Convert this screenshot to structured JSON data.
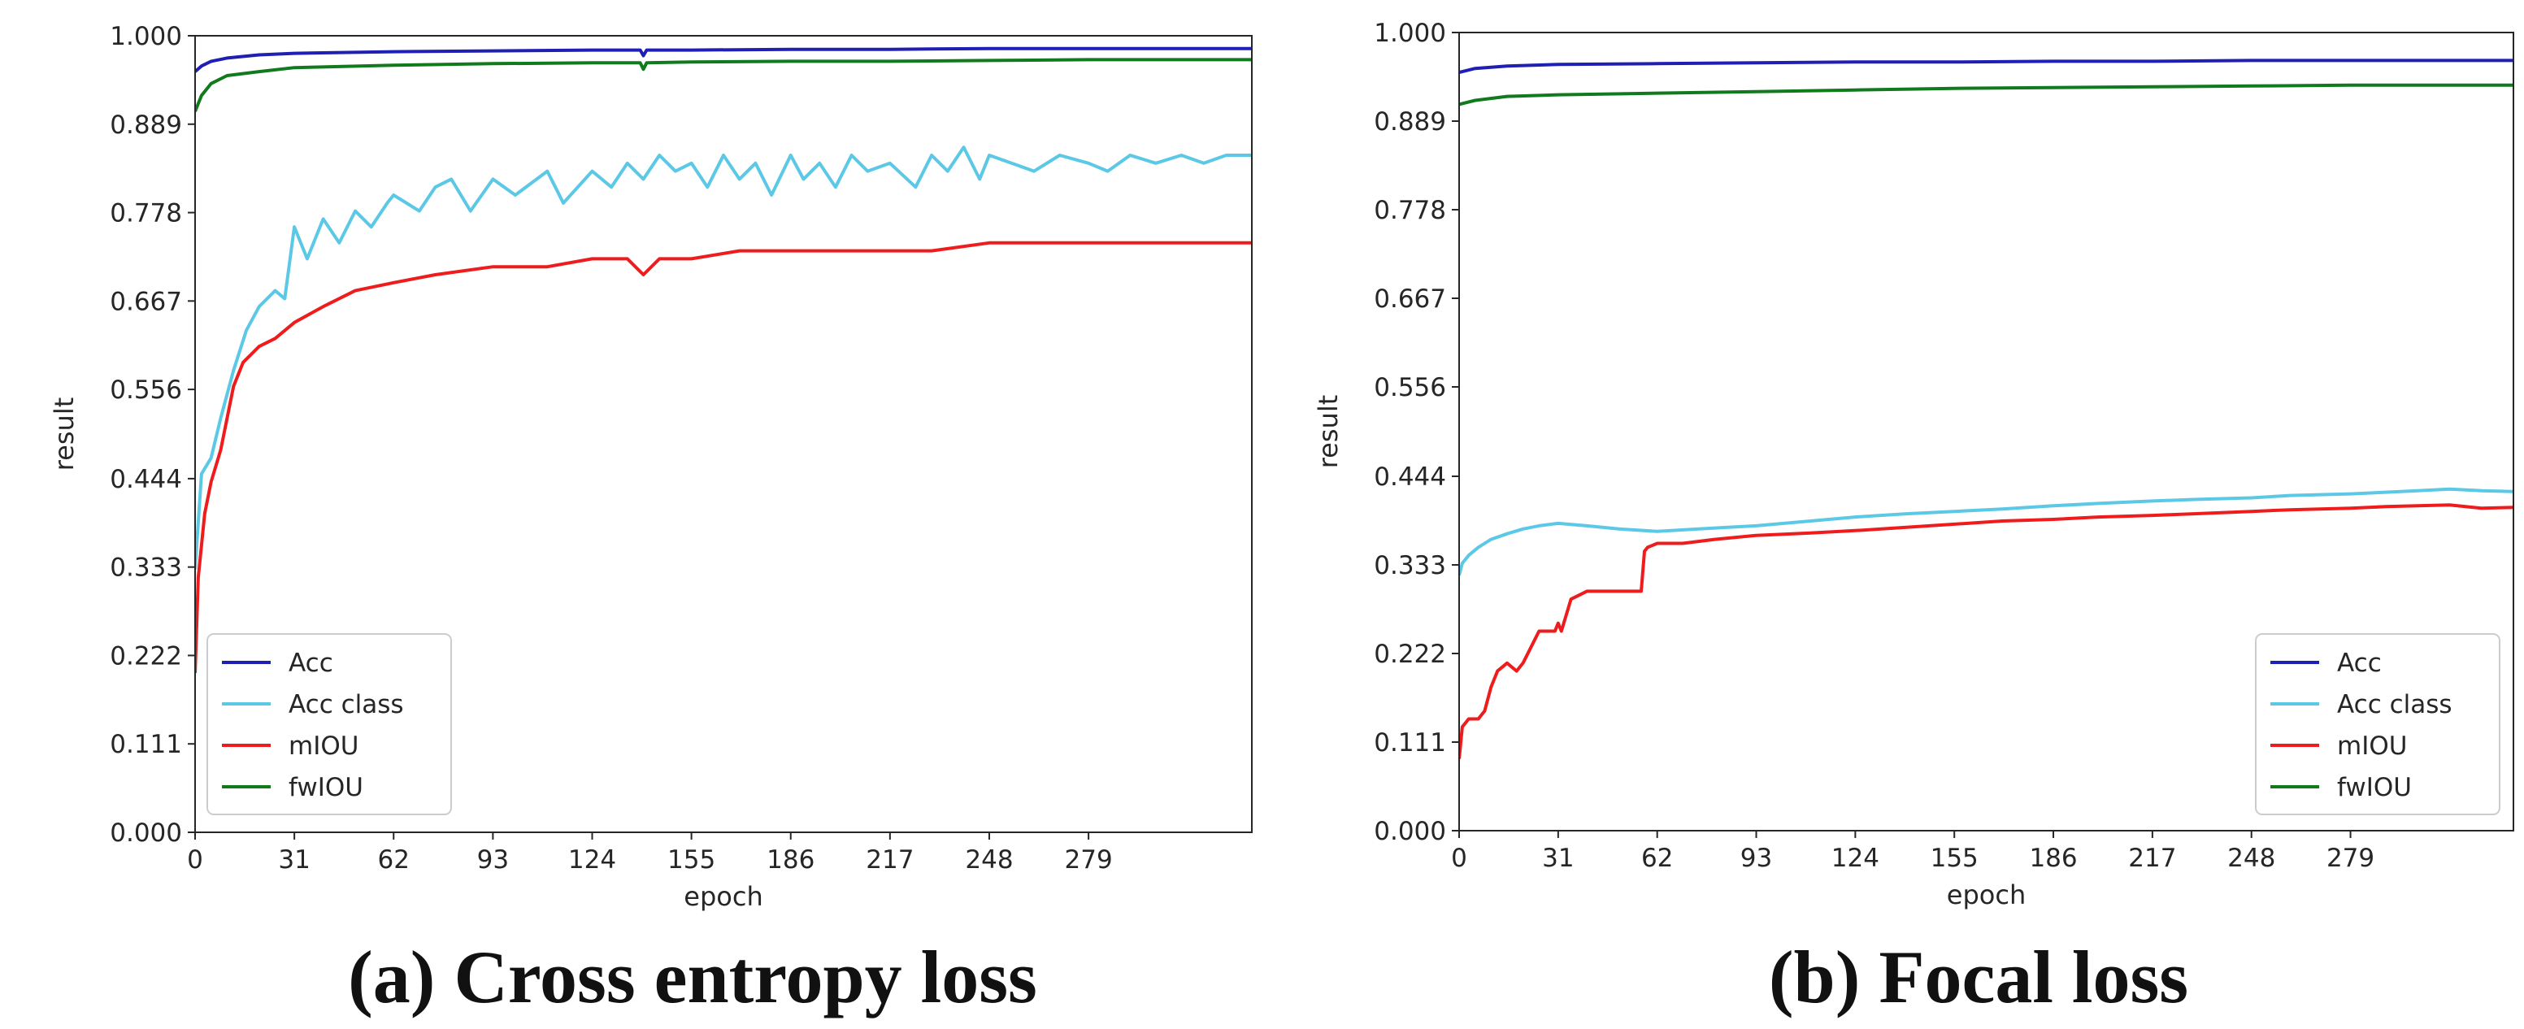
{
  "colors": {
    "Acc": "#1f1fb4",
    "Acc class": "#5bc8e6",
    "mIOU": "#ee1c1c",
    "fwIOU": "#117a1d"
  },
  "chart_data": [
    {
      "type": "line",
      "caption": "(a) Cross entropy loss",
      "xlabel": "epoch",
      "ylabel": "result",
      "xlim": [
        0,
        330
      ],
      "ylim": [
        0,
        1
      ],
      "xticks": [
        0,
        31,
        62,
        93,
        124,
        155,
        186,
        217,
        248,
        279
      ],
      "xtick_labels": [
        "0",
        "31",
        "62",
        "93",
        "124",
        "155",
        "186",
        "217",
        "248",
        "279"
      ],
      "yticks": [
        0,
        0.111,
        0.222,
        0.333,
        0.444,
        0.556,
        0.667,
        0.778,
        0.889,
        1.0
      ],
      "ytick_labels": [
        "0.000",
        "0.111",
        "0.222",
        "0.333",
        "0.444",
        "0.556",
        "0.667",
        "0.778",
        "0.889",
        "1.000"
      ],
      "legend": "lower-left",
      "series": [
        {
          "name": "Acc",
          "x": [
            0,
            2,
            5,
            10,
            20,
            31,
            62,
            93,
            124,
            139,
            140,
            141,
            155,
            186,
            217,
            248,
            279,
            330
          ],
          "y": [
            0.955,
            0.962,
            0.968,
            0.972,
            0.976,
            0.978,
            0.98,
            0.981,
            0.982,
            0.982,
            0.975,
            0.982,
            0.982,
            0.983,
            0.983,
            0.984,
            0.984,
            0.984
          ]
        },
        {
          "name": "Acc class",
          "x": [
            0,
            2,
            5,
            8,
            12,
            16,
            20,
            25,
            28,
            31,
            35,
            40,
            45,
            50,
            55,
            60,
            62,
            70,
            75,
            80,
            86,
            93,
            100,
            110,
            115,
            124,
            130,
            135,
            140,
            145,
            150,
            155,
            160,
            165,
            170,
            175,
            180,
            186,
            190,
            195,
            200,
            205,
            210,
            217,
            225,
            230,
            235,
            240,
            245,
            248,
            255,
            262,
            270,
            279,
            285,
            292,
            300,
            308,
            315,
            322,
            330
          ],
          "y": [
            0.33,
            0.45,
            0.47,
            0.52,
            0.58,
            0.63,
            0.66,
            0.68,
            0.67,
            0.76,
            0.72,
            0.77,
            0.74,
            0.78,
            0.76,
            0.79,
            0.8,
            0.78,
            0.81,
            0.82,
            0.78,
            0.82,
            0.8,
            0.83,
            0.79,
            0.83,
            0.81,
            0.84,
            0.82,
            0.85,
            0.83,
            0.84,
            0.81,
            0.85,
            0.82,
            0.84,
            0.8,
            0.85,
            0.82,
            0.84,
            0.81,
            0.85,
            0.83,
            0.84,
            0.81,
            0.85,
            0.83,
            0.86,
            0.82,
            0.85,
            0.84,
            0.83,
            0.85,
            0.84,
            0.83,
            0.85,
            0.84,
            0.85,
            0.84,
            0.85,
            0.85
          ]
        },
        {
          "name": "mIOU",
          "x": [
            0,
            1,
            3,
            5,
            8,
            10,
            12,
            15,
            20,
            25,
            31,
            40,
            50,
            62,
            75,
            93,
            110,
            124,
            135,
            140,
            145,
            155,
            170,
            186,
            200,
            217,
            230,
            248,
            260,
            279,
            300,
            330
          ],
          "y": [
            0.2,
            0.32,
            0.4,
            0.44,
            0.48,
            0.52,
            0.56,
            0.59,
            0.61,
            0.62,
            0.64,
            0.66,
            0.68,
            0.69,
            0.7,
            0.71,
            0.71,
            0.72,
            0.72,
            0.7,
            0.72,
            0.72,
            0.73,
            0.73,
            0.73,
            0.73,
            0.73,
            0.74,
            0.74,
            0.74,
            0.74,
            0.74
          ]
        },
        {
          "name": "fwIOU",
          "x": [
            0,
            2,
            5,
            10,
            20,
            31,
            62,
            93,
            124,
            139,
            140,
            141,
            155,
            186,
            217,
            248,
            279,
            330
          ],
          "y": [
            0.905,
            0.925,
            0.94,
            0.95,
            0.955,
            0.96,
            0.963,
            0.965,
            0.966,
            0.966,
            0.958,
            0.966,
            0.967,
            0.968,
            0.968,
            0.969,
            0.97,
            0.97
          ]
        }
      ]
    },
    {
      "type": "line",
      "caption": "(b) Focal loss",
      "xlabel": "epoch",
      "ylabel": "result",
      "xlim": [
        0,
        330
      ],
      "ylim": [
        0,
        1
      ],
      "xticks": [
        0,
        31,
        62,
        93,
        124,
        155,
        186,
        217,
        248,
        279
      ],
      "xtick_labels": [
        "0",
        "31",
        "62",
        "93",
        "124",
        "155",
        "186",
        "217",
        "248",
        "279"
      ],
      "yticks": [
        0,
        0.111,
        0.222,
        0.333,
        0.444,
        0.556,
        0.667,
        0.778,
        0.889,
        1.0
      ],
      "ytick_labels": [
        "0.000",
        "0.111",
        "0.222",
        "0.333",
        "0.444",
        "0.556",
        "0.667",
        "0.778",
        "0.889",
        "1.000"
      ],
      "legend": "lower-right",
      "series": [
        {
          "name": "Acc",
          "x": [
            0,
            5,
            15,
            31,
            62,
            93,
            124,
            155,
            186,
            217,
            248,
            279,
            330
          ],
          "y": [
            0.95,
            0.955,
            0.958,
            0.96,
            0.961,
            0.962,
            0.963,
            0.963,
            0.964,
            0.964,
            0.965,
            0.965,
            0.965
          ]
        },
        {
          "name": "Acc class",
          "x": [
            0,
            1,
            3,
            6,
            10,
            15,
            20,
            25,
            31,
            40,
            50,
            62,
            75,
            93,
            110,
            124,
            140,
            155,
            170,
            186,
            200,
            217,
            230,
            248,
            260,
            279,
            290,
            300,
            310,
            320,
            330
          ],
          "y": [
            0.32,
            0.335,
            0.345,
            0.355,
            0.365,
            0.372,
            0.378,
            0.382,
            0.385,
            0.382,
            0.378,
            0.375,
            0.378,
            0.382,
            0.388,
            0.393,
            0.397,
            0.4,
            0.403,
            0.407,
            0.41,
            0.413,
            0.415,
            0.417,
            0.42,
            0.422,
            0.424,
            0.426,
            0.428,
            0.426,
            0.425
          ]
        },
        {
          "name": "mIOU",
          "x": [
            0,
            1,
            3,
            6,
            8,
            10,
            12,
            15,
            18,
            20,
            25,
            30,
            31,
            32,
            35,
            40,
            45,
            50,
            55,
            57,
            58,
            59,
            62,
            70,
            80,
            93,
            110,
            124,
            140,
            155,
            170,
            186,
            200,
            217,
            230,
            248,
            260,
            279,
            290,
            300,
            310,
            320,
            330
          ],
          "y": [
            0.09,
            0.13,
            0.14,
            0.14,
            0.15,
            0.18,
            0.2,
            0.21,
            0.2,
            0.21,
            0.25,
            0.25,
            0.26,
            0.25,
            0.29,
            0.3,
            0.3,
            0.3,
            0.3,
            0.3,
            0.35,
            0.355,
            0.36,
            0.36,
            0.365,
            0.37,
            0.373,
            0.376,
            0.38,
            0.384,
            0.388,
            0.39,
            0.393,
            0.395,
            0.397,
            0.4,
            0.402,
            0.404,
            0.406,
            0.407,
            0.408,
            0.404,
            0.405
          ]
        },
        {
          "name": "fwIOU",
          "x": [
            0,
            5,
            15,
            31,
            62,
            93,
            124,
            155,
            186,
            217,
            248,
            279,
            330
          ],
          "y": [
            0.91,
            0.915,
            0.92,
            0.922,
            0.924,
            0.926,
            0.928,
            0.93,
            0.931,
            0.932,
            0.933,
            0.934,
            0.934
          ]
        }
      ]
    }
  ]
}
